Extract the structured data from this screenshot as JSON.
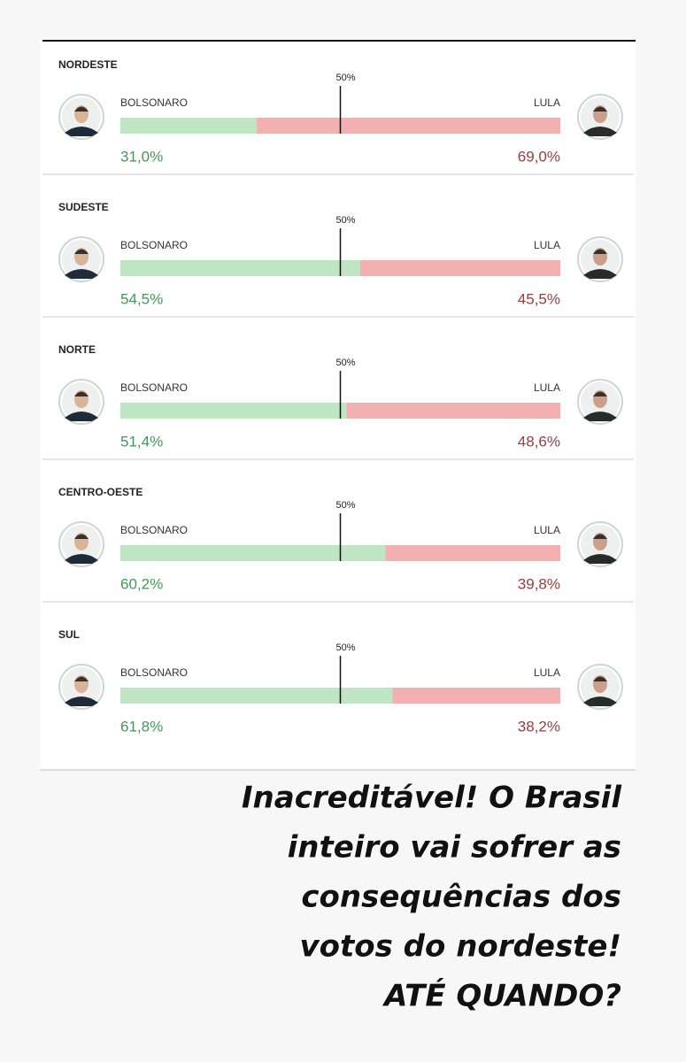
{
  "chart_data": [
    {
      "type": "stacked-bar",
      "title": "NORDESTE",
      "xlim": [
        0,
        100
      ],
      "xticks": [
        {
          "value": 50,
          "label": "50%"
        }
      ],
      "series": [
        {
          "name": "BOLSONARO",
          "color": "#bfe5c3",
          "values": [
            31.0
          ],
          "value_labels": [
            "31,0%"
          ]
        },
        {
          "name": "LULA",
          "color": "#f2b0b0",
          "values": [
            69.0
          ],
          "value_labels": [
            "69,0%"
          ]
        }
      ]
    },
    {
      "type": "stacked-bar",
      "title": "SUDESTE",
      "xlim": [
        0,
        100
      ],
      "xticks": [
        {
          "value": 50,
          "label": "50%"
        }
      ],
      "series": [
        {
          "name": "BOLSONARO",
          "color": "#bfe5c3",
          "values": [
            54.5
          ],
          "value_labels": [
            "54,5%"
          ]
        },
        {
          "name": "LULA",
          "color": "#f2b0b0",
          "values": [
            45.5
          ],
          "value_labels": [
            "45,5%"
          ]
        }
      ]
    },
    {
      "type": "stacked-bar",
      "title": "NORTE",
      "xlim": [
        0,
        100
      ],
      "xticks": [
        {
          "value": 50,
          "label": "50%"
        }
      ],
      "series": [
        {
          "name": "BOLSONARO",
          "color": "#bfe5c3",
          "values": [
            51.4
          ],
          "value_labels": [
            "51,4%"
          ]
        },
        {
          "name": "LULA",
          "color": "#f2b0b0",
          "values": [
            48.6
          ],
          "value_labels": [
            "48,6%"
          ]
        }
      ]
    },
    {
      "type": "stacked-bar",
      "title": "CENTRO-OESTE",
      "xlim": [
        0,
        100
      ],
      "xticks": [
        {
          "value": 50,
          "label": "50%"
        }
      ],
      "series": [
        {
          "name": "BOLSONARO",
          "color": "#bfe5c3",
          "values": [
            60.2
          ],
          "value_labels": [
            "60,2%"
          ]
        },
        {
          "name": "LULA",
          "color": "#f2b0b0",
          "values": [
            39.8
          ],
          "value_labels": [
            "39,8%"
          ]
        }
      ]
    },
    {
      "type": "stacked-bar",
      "title": "SUL",
      "xlim": [
        0,
        100
      ],
      "xticks": [
        {
          "value": 50,
          "label": "50%"
        }
      ],
      "series": [
        {
          "name": "BOLSONARO",
          "color": "#bfe5c3",
          "values": [
            61.8
          ],
          "value_labels": [
            "61,8%"
          ]
        },
        {
          "name": "LULA",
          "color": "#f2b0b0",
          "values": [
            38.2
          ],
          "value_labels": [
            "38,2%"
          ]
        }
      ]
    }
  ],
  "caption": [
    "Inacreditável! O Brasil",
    "inteiro vai sofrer as",
    "consequências dos",
    "votos do nordeste!",
    "ATÉ QUANDO?"
  ]
}
